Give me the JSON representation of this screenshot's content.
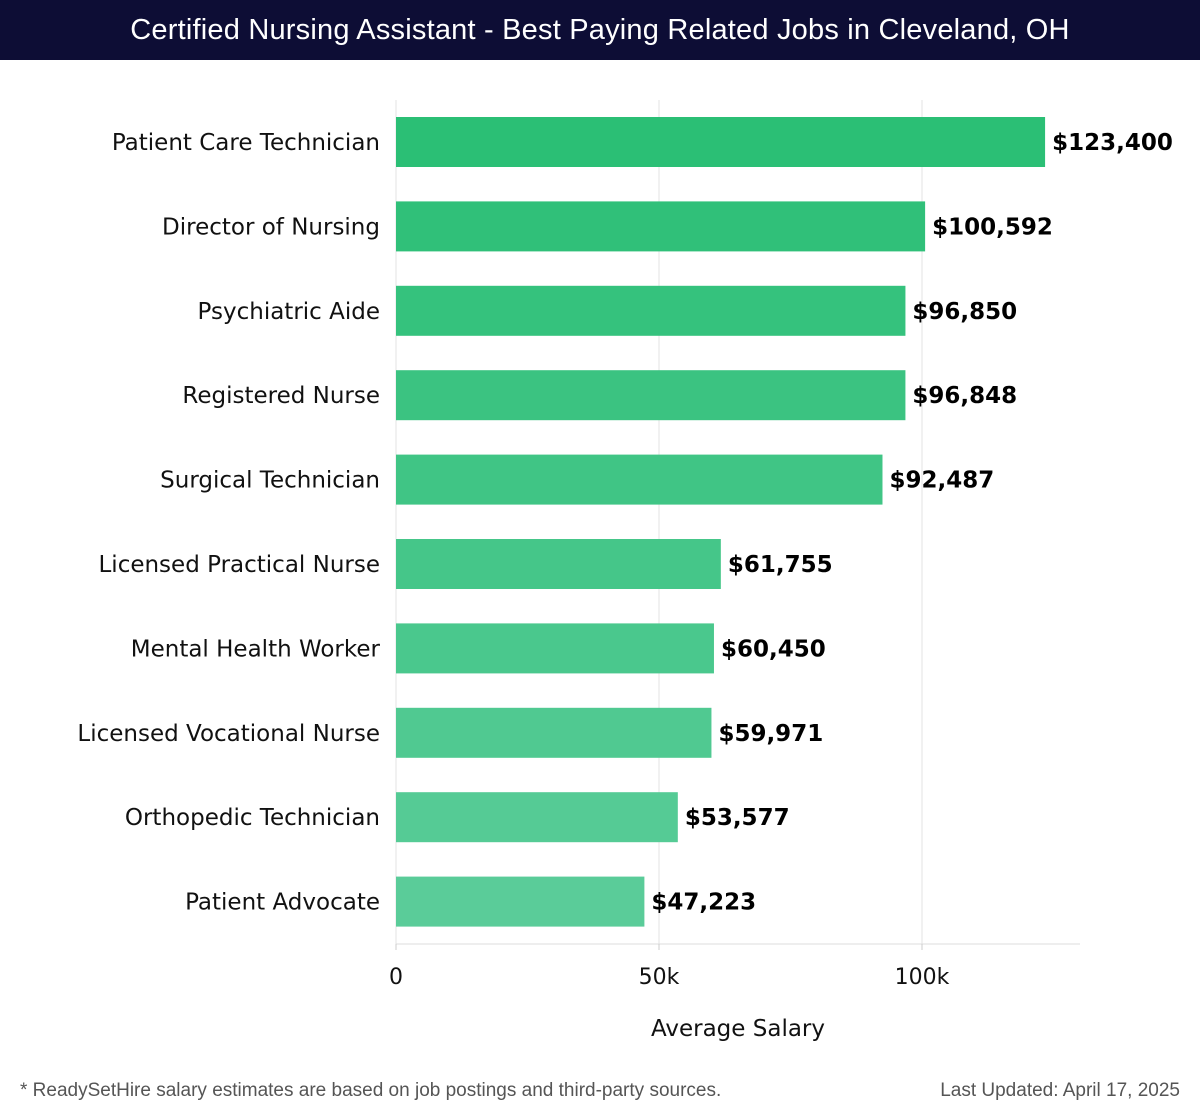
{
  "header": {
    "title": "Certified Nursing Assistant - Best Paying Related Jobs in Cleveland, OH"
  },
  "chart_data": {
    "type": "bar",
    "orientation": "horizontal",
    "title": "Certified Nursing Assistant - Best Paying Related Jobs in Cleveland, OH",
    "xlabel": "Average Salary",
    "ylabel": "",
    "xlim": [
      0,
      130000
    ],
    "grid": true,
    "categories": [
      "Patient Care Technician",
      "Director of Nursing",
      "Psychiatric Aide",
      "Registered Nurse",
      "Surgical Technician",
      "Licensed Practical Nurse",
      "Mental Health Worker",
      "Licensed Vocational Nurse",
      "Orthopedic Technician",
      "Patient Advocate"
    ],
    "values": [
      123400,
      100592,
      96850,
      96848,
      92487,
      61755,
      60450,
      59971,
      53577,
      47223
    ],
    "value_labels": [
      "$123,400",
      "$100,592",
      "$96,850",
      "$96,848",
      "$92,487",
      "$61,755",
      "$60,450",
      "$59,971",
      "$53,577",
      "$47,223"
    ],
    "x_ticks": [
      0,
      50000,
      100000
    ],
    "x_tick_labels": [
      "0",
      "50k",
      "100k"
    ],
    "colors": {
      "top": "#2bbf75",
      "bottom": "#5acc99",
      "grid": "#e3e3e3",
      "text": "#111111"
    }
  },
  "footer": {
    "note": "* ReadySetHire salary estimates are based on job postings and third-party sources.",
    "updated": "Last Updated: April 17, 2025"
  }
}
